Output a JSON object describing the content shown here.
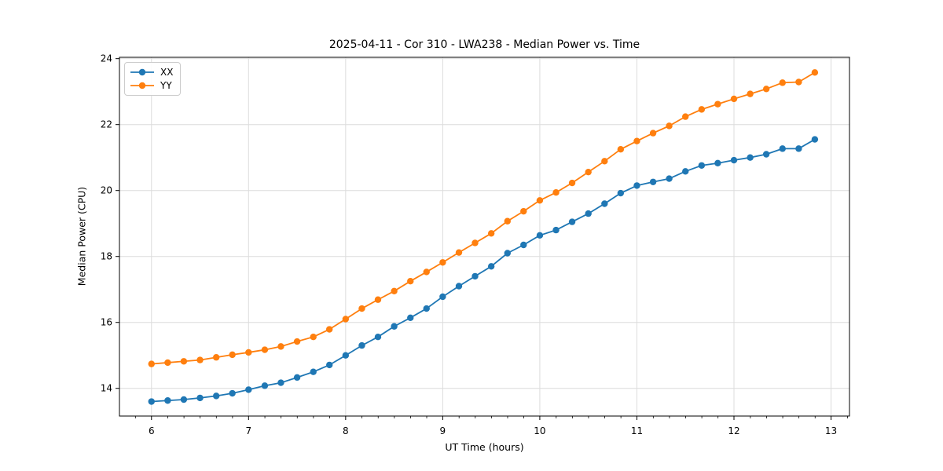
{
  "title": "2025-04-11 - Cor 310 - LWA238 - Median Power vs. Time",
  "chart_data": {
    "type": "line",
    "title": "2025-04-11 - Cor 310 - LWA238 - Median Power vs. Time",
    "xlabel": "UT Time (hours)",
    "ylabel": "Median Power (CPU)",
    "xlim": [
      5.67,
      13.19
    ],
    "ylim": [
      13.16,
      24.04
    ],
    "xticks": [
      6,
      7,
      8,
      9,
      10,
      11,
      12,
      13
    ],
    "yticks": [
      14,
      16,
      18,
      20,
      22,
      24
    ],
    "x_minor_step": 0.1667,
    "grid": true,
    "legend_position": "upper left",
    "marker": "o",
    "x": [
      6.0,
      6.167,
      6.333,
      6.5,
      6.667,
      6.833,
      7.0,
      7.167,
      7.333,
      7.5,
      7.667,
      7.833,
      8.0,
      8.167,
      8.333,
      8.5,
      8.667,
      8.833,
      9.0,
      9.167,
      9.333,
      9.5,
      9.667,
      9.833,
      10.0,
      10.167,
      10.333,
      10.5,
      10.667,
      10.833,
      11.0,
      11.167,
      11.333,
      11.5,
      11.667,
      11.833,
      12.0,
      12.167,
      12.333,
      12.5,
      12.667,
      12.833
    ],
    "series": [
      {
        "name": "XX",
        "color": "#1f77b4",
        "values": [
          13.6,
          13.63,
          13.66,
          13.71,
          13.77,
          13.85,
          13.96,
          14.08,
          14.17,
          14.33,
          14.5,
          14.71,
          15.0,
          15.3,
          15.56,
          15.88,
          16.14,
          16.42,
          16.78,
          17.1,
          17.4,
          17.7,
          18.1,
          18.35,
          18.64,
          18.8,
          19.05,
          19.3,
          19.6,
          19.92,
          20.15,
          20.26,
          20.36,
          20.58,
          20.76,
          20.83,
          20.92,
          21.0,
          21.1,
          21.27,
          21.27,
          21.55
        ]
      },
      {
        "name": "YY",
        "color": "#ff7f0e",
        "values": [
          14.74,
          14.78,
          14.82,
          14.86,
          14.94,
          15.02,
          15.09,
          15.17,
          15.27,
          15.42,
          15.56,
          15.79,
          16.1,
          16.42,
          16.69,
          16.95,
          17.25,
          17.53,
          17.82,
          18.12,
          18.41,
          18.7,
          19.07,
          19.37,
          19.7,
          19.94,
          20.23,
          20.56,
          20.89,
          21.25,
          21.5,
          21.74,
          21.96,
          22.24,
          22.46,
          22.62,
          22.78,
          22.93,
          23.08,
          23.27,
          23.29,
          23.58
        ]
      }
    ],
    "style": {
      "grid_color": "#dcdcdc",
      "spine_color": "#000000",
      "tick_label_size": 12
    }
  }
}
